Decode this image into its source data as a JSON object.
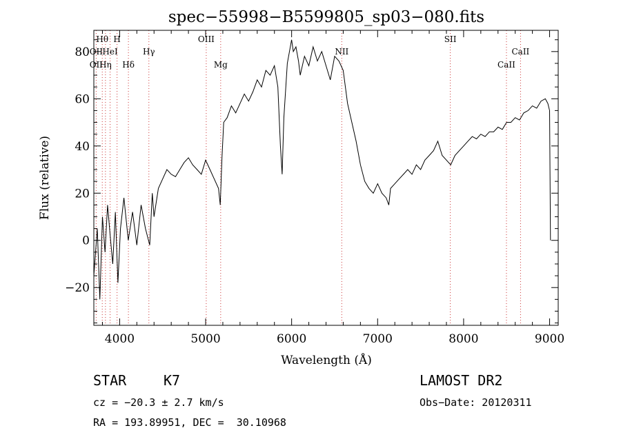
{
  "chart_data": {
    "type": "line",
    "title": "spec−55998−B5599805_sp03−080.fits",
    "xlabel": "Wavelength (Å)",
    "ylabel": "Flux (relative)",
    "xlim": [
      3700,
      9100
    ],
    "ylim": [
      -36,
      89
    ],
    "xticks": [
      4000,
      5000,
      6000,
      7000,
      8000,
      9000
    ],
    "yticks": [
      -20,
      0,
      20,
      40,
      60,
      80
    ],
    "ytick_labels": [
      "−20",
      "0",
      "20",
      "40",
      "60",
      "80"
    ],
    "grid": false,
    "line_color": "#000000",
    "marker_color": "#cc3333",
    "spectral_lines": [
      {
        "label": "Hθ",
        "wavelength": 3798,
        "row": 1
      },
      {
        "label": "H",
        "wavelength": 3970,
        "row": 1
      },
      {
        "label": "OII",
        "wavelength": 3727,
        "row": 2
      },
      {
        "label": "HeI",
        "wavelength": 3889,
        "row": 2
      },
      {
        "label": "Hγ",
        "wavelength": 4340,
        "row": 2
      },
      {
        "label": "OII",
        "wavelength": 3727,
        "row": 3
      },
      {
        "label": "Hη",
        "wavelength": 3835,
        "row": 3
      },
      {
        "label": "Hδ",
        "wavelength": 4102,
        "row": 3
      },
      {
        "label": "OIII",
        "wavelength": 5007,
        "row": 1
      },
      {
        "label": "Mg",
        "wavelength": 5175,
        "row": 3
      },
      {
        "label": "NII",
        "wavelength": 6583,
        "row": 2
      },
      {
        "label": "SII",
        "wavelength": 7845,
        "row": 1
      },
      {
        "label": "CaII",
        "wavelength": 8662,
        "row": 2
      },
      {
        "label": "CaII",
        "wavelength": 8498,
        "row": 3
      }
    ],
    "series": [
      {
        "x": [
          3700,
          3740,
          3770,
          3800,
          3830,
          3860,
          3890,
          3920,
          3950,
          3980,
          4010,
          4050,
          4100,
          4150,
          4200,
          4250,
          4300,
          4350,
          4380,
          4400,
          4450,
          4500,
          4550,
          4600,
          4650,
          4700,
          4750,
          4800,
          4850,
          4900,
          4950,
          5000,
          5050,
          5100,
          5150,
          5170,
          5190,
          5210,
          5250,
          5300,
          5350,
          5400,
          5450,
          5500,
          5550,
          5600,
          5650,
          5700,
          5750,
          5800,
          5840,
          5870,
          5890,
          5910,
          5950,
          6000,
          6020,
          6050,
          6080,
          6100,
          6150,
          6200,
          6250,
          6300,
          6350,
          6400,
          6450,
          6500,
          6550,
          6600,
          6650,
          6700,
          6750,
          6800,
          6850,
          6900,
          6950,
          7000,
          7050,
          7100,
          7130,
          7150,
          7200,
          7250,
          7300,
          7350,
          7400,
          7450,
          7500,
          7550,
          7600,
          7650,
          7700,
          7750,
          7800,
          7850,
          7900,
          7950,
          8000,
          8050,
          8100,
          8150,
          8200,
          8250,
          8300,
          8350,
          8400,
          8450,
          8500,
          8550,
          8600,
          8650,
          8700,
          8750,
          8800,
          8850,
          8900,
          8950,
          8980,
          9000,
          9010
        ],
        "y": [
          -15,
          5,
          -25,
          10,
          -5,
          15,
          2,
          -10,
          12,
          -18,
          5,
          18,
          0,
          12,
          -2,
          15,
          5,
          -2,
          20,
          10,
          22,
          26,
          30,
          28,
          27,
          30,
          33,
          35,
          32,
          30,
          28,
          34,
          30,
          26,
          22,
          15,
          35,
          50,
          52,
          57,
          54,
          58,
          62,
          59,
          63,
          68,
          65,
          72,
          70,
          74,
          65,
          40,
          28,
          52,
          75,
          85,
          80,
          82,
          76,
          70,
          78,
          74,
          82,
          76,
          80,
          74,
          68,
          78,
          76,
          72,
          58,
          50,
          42,
          32,
          25,
          22,
          20,
          24,
          20,
          18,
          15,
          22,
          24,
          26,
          28,
          30,
          28,
          32,
          30,
          34,
          36,
          38,
          42,
          36,
          34,
          32,
          36,
          38,
          40,
          42,
          44,
          43,
          45,
          44,
          46,
          46,
          48,
          47,
          50,
          50,
          52,
          51,
          54,
          55,
          57,
          56,
          59,
          60,
          58,
          55,
          0
        ]
      }
    ]
  },
  "footer": {
    "object_type": "STAR",
    "subclass": "K7",
    "survey": "LAMOST DR2",
    "redshift": "cz = −20.3 ± 2.7 km/s",
    "obs_date": "Obs−Date: 20120311",
    "coords": "RA = 193.89951, DEC =  30.10968"
  }
}
